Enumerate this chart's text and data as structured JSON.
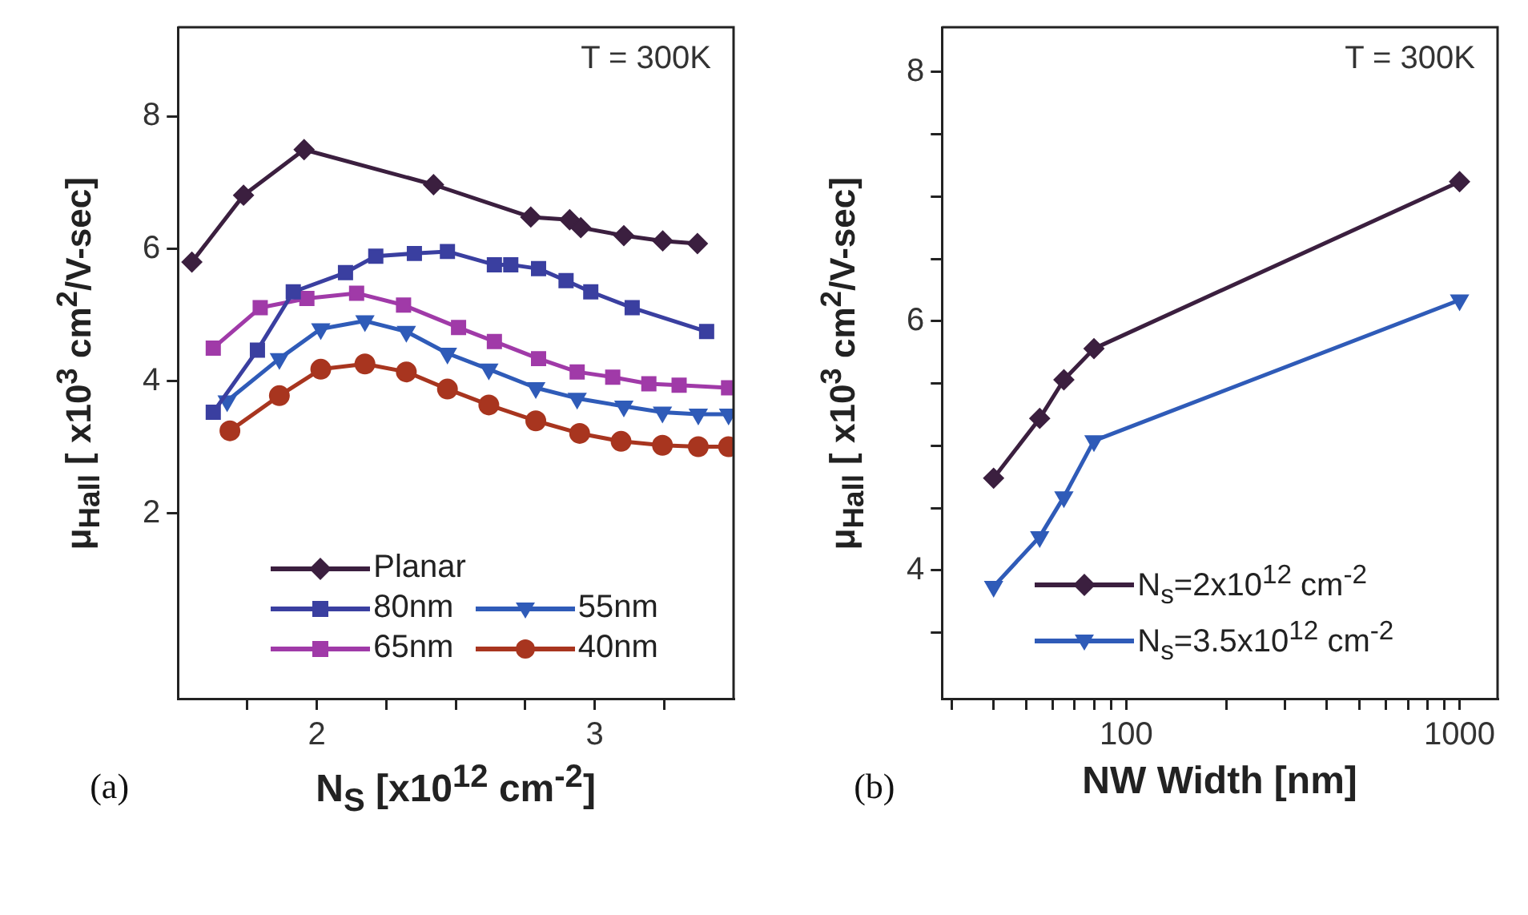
{
  "chart_data": [
    {
      "type": "line",
      "title": "(a)",
      "xlabel": "N$_{S}$ [x10$^{12}$ cm$^{-2}$]",
      "ylabel": "μ$_{Hall}$ [ x10$^{3}$ cm$^{2}$/V-sec]",
      "annotations": [
        "T = 300K"
      ],
      "legend": "bottom left",
      "grid": false,
      "line_style": "solid",
      "xlim": [
        1.5,
        3.5
      ],
      "xticks": [
        {
          "value": 1.75,
          "label": null
        },
        2,
        {
          "value": 2.25,
          "label": null
        },
        {
          "value": 2.5,
          "label": null
        },
        {
          "value": 2.75,
          "label": null
        },
        3,
        {
          "value": 3.25,
          "label": null
        }
      ],
      "ylim": [
        -0.8,
        9.35
      ],
      "yticks": [
        2,
        4,
        6,
        8
      ],
      "series": [
        {
          "name": "Planar",
          "color": "#3b1f3f",
          "marker": "diamond",
          "x": [
            1.55,
            1.736,
            1.954,
            2.42,
            2.77,
            2.91,
            2.95,
            3.105,
            3.245,
            3.37
          ],
          "values": [
            5.8,
            6.81,
            7.5,
            6.97,
            6.48,
            6.44,
            6.32,
            6.2,
            6.12,
            6.08
          ]
        },
        {
          "name": "80nm",
          "color": "#3a3fa0",
          "marker": "square",
          "x": [
            1.627,
            1.786,
            1.915,
            2.103,
            2.212,
            2.351,
            2.47,
            2.639,
            2.698,
            2.798,
            2.897,
            2.986,
            3.135,
            3.403
          ],
          "values": [
            3.53,
            4.47,
            5.35,
            5.64,
            5.89,
            5.93,
            5.96,
            5.76,
            5.76,
            5.7,
            5.52,
            5.35,
            5.11,
            4.75
          ]
        },
        {
          "name": "65nm",
          "color": "#a03aa8",
          "marker": "square",
          "x": [
            1.627,
            1.796,
            1.964,
            2.143,
            2.312,
            2.51,
            2.639,
            2.798,
            2.937,
            3.065,
            3.195,
            3.304,
            3.482
          ],
          "values": [
            4.5,
            5.11,
            5.25,
            5.33,
            5.15,
            4.81,
            4.6,
            4.34,
            4.14,
            4.06,
            3.96,
            3.94,
            3.9
          ]
        },
        {
          "name": "55nm",
          "color": "#2f5bb8",
          "marker": "triangle",
          "x": [
            1.677,
            1.865,
            2.014,
            2.173,
            2.322,
            2.47,
            2.619,
            2.788,
            2.937,
            3.105,
            3.244,
            3.373,
            3.482
          ],
          "values": [
            3.7,
            4.34,
            4.79,
            4.91,
            4.75,
            4.42,
            4.18,
            3.9,
            3.74,
            3.62,
            3.53,
            3.5,
            3.5
          ]
        },
        {
          "name": "40nm",
          "color": "#a8351f",
          "marker": "circle",
          "x": [
            1.687,
            1.865,
            2.014,
            2.173,
            2.322,
            2.47,
            2.619,
            2.788,
            2.946,
            3.095,
            3.244,
            3.373,
            3.482
          ],
          "values": [
            3.25,
            3.78,
            4.18,
            4.26,
            4.14,
            3.88,
            3.64,
            3.4,
            3.21,
            3.09,
            3.03,
            3.01,
            3.01
          ]
        }
      ]
    },
    {
      "type": "line",
      "title": "(b)",
      "xlabel": "NW Width [nm]",
      "ylabel": "μ$_{Hall}$ [ x10$^{3}$ cm$^{2}$/V-sec]",
      "annotations": [
        "T = 300K"
      ],
      "legend": "bottom left",
      "grid": false,
      "line_style": "solid",
      "log": "x",
      "xlim": [
        28,
        1300
      ],
      "xticks": [
        {
          "value": 30,
          "label": null
        },
        {
          "value": 40,
          "label": null
        },
        {
          "value": 50,
          "label": null
        },
        {
          "value": 60,
          "label": null
        },
        {
          "value": 70,
          "label": null
        },
        {
          "value": 80,
          "label": null
        },
        {
          "value": 90,
          "label": null
        },
        100,
        {
          "value": 200,
          "label": null
        },
        {
          "value": 300,
          "label": null
        },
        {
          "value": 400,
          "label": null
        },
        {
          "value": 500,
          "label": null
        },
        {
          "value": 600,
          "label": null
        },
        {
          "value": 700,
          "label": null
        },
        {
          "value": 800,
          "label": null
        },
        {
          "value": 900,
          "label": null
        },
        1000
      ],
      "ylim": [
        2.97,
        8.36
      ],
      "yticks": [
        {
          "value": 3.5,
          "label": null
        },
        4,
        {
          "value": 4.5,
          "label": null
        },
        {
          "value": 5,
          "label": null
        },
        {
          "value": 5.5,
          "label": null
        },
        6,
        {
          "value": 6.5,
          "label": null
        },
        {
          "value": 7,
          "label": null
        },
        {
          "value": 7.5,
          "label": null
        },
        8
      ],
      "series": [
        {
          "name": "N$_{s}$=2x10$^{12}$ cm$^{-2}$",
          "color": "#3b1f3f",
          "marker": "diamond",
          "x": [
            40,
            55,
            65,
            80,
            1000
          ],
          "values": [
            4.74,
            5.22,
            5.53,
            5.78,
            7.12
          ]
        },
        {
          "name": "N$_{s}$=3.5x10$^{12}$ cm$^{-2}$",
          "color": "#2f5bb8",
          "marker": "triangle",
          "x": [
            40,
            55,
            65,
            80,
            1000
          ],
          "values": [
            3.87,
            4.27,
            4.59,
            5.04,
            6.17
          ]
        }
      ]
    }
  ]
}
